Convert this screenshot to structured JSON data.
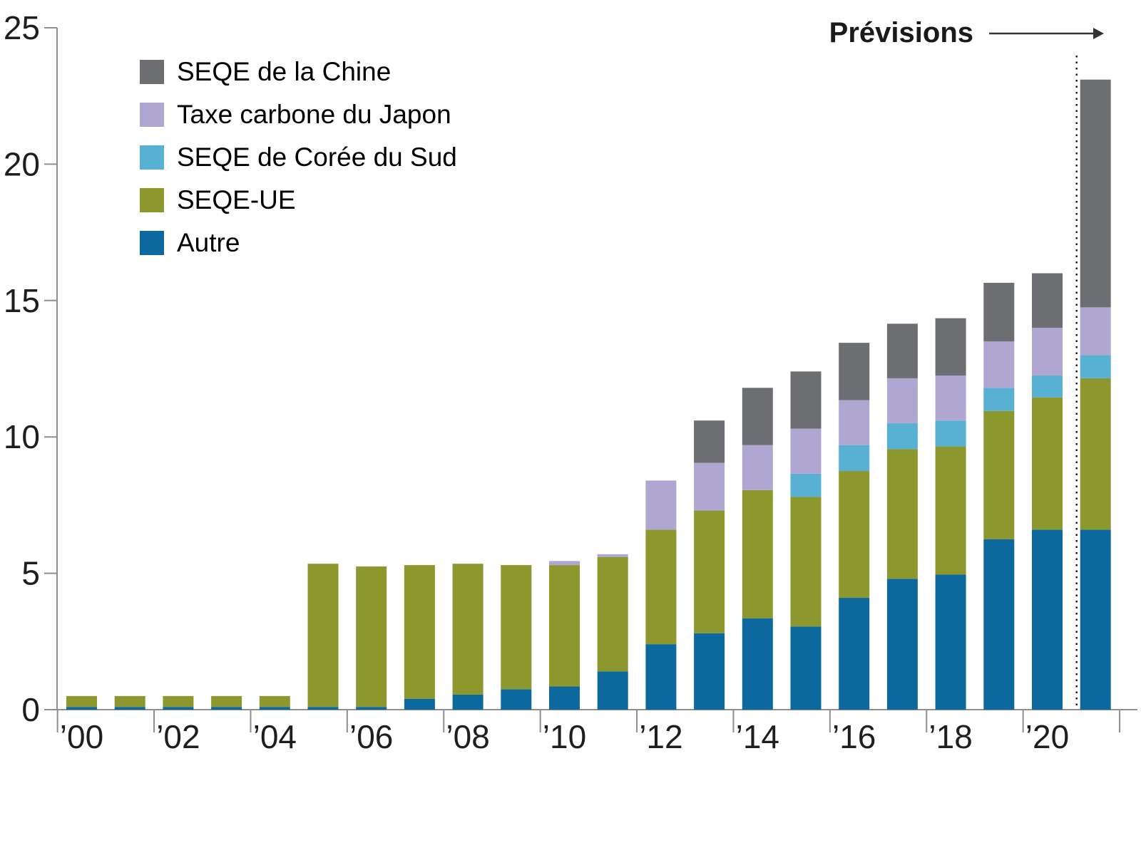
{
  "chart_data": {
    "type": "bar",
    "stacked": true,
    "years": [
      2000,
      2001,
      2002,
      2003,
      2004,
      2005,
      2006,
      2007,
      2008,
      2009,
      2010,
      2011,
      2012,
      2013,
      2014,
      2015,
      2016,
      2017,
      2018,
      2019,
      2020,
      2021
    ],
    "series": [
      {
        "name": "Autre",
        "color": "#0d699d",
        "values": [
          0.1,
          0.1,
          0.1,
          0.1,
          0.1,
          0.1,
          0.1,
          0.4,
          0.55,
          0.75,
          0.85,
          1.4,
          2.4,
          2.8,
          3.35,
          3.05,
          4.1,
          4.8,
          4.95,
          6.25,
          6.6,
          6.6
        ]
      },
      {
        "name": "SEQE-UE",
        "color": "#8c982d",
        "values": [
          0.4,
          0.4,
          0.4,
          0.4,
          0.4,
          5.25,
          5.15,
          4.9,
          4.8,
          4.55,
          4.45,
          4.2,
          4.2,
          4.5,
          4.7,
          4.75,
          4.65,
          4.75,
          4.7,
          4.7,
          4.85,
          5.55
        ]
      },
      {
        "name": "SEQE de Corée du Sud",
        "color": "#58b0d2",
        "values": [
          0,
          0,
          0,
          0,
          0,
          0,
          0,
          0,
          0,
          0,
          0,
          0,
          0,
          0,
          0,
          0.85,
          0.95,
          0.95,
          0.95,
          0.85,
          0.8,
          0.85
        ]
      },
      {
        "name": "Taxe carbone du Japon",
        "color": "#b0a6d2",
        "values": [
          0,
          0,
          0,
          0,
          0,
          0,
          0,
          0,
          0,
          0,
          0.15,
          0.1,
          1.8,
          1.75,
          1.65,
          1.65,
          1.65,
          1.65,
          1.65,
          1.7,
          1.75,
          1.75
        ]
      },
      {
        "name": "SEQE de la Chine",
        "color": "#6d6e71",
        "values": [
          0,
          0,
          0,
          0,
          0,
          0,
          0,
          0,
          0,
          0,
          0,
          0,
          0,
          1.55,
          2.1,
          2.1,
          2.1,
          2.0,
          2.1,
          2.15,
          2.0,
          8.35
        ]
      }
    ],
    "legend": [
      {
        "label": "SEQE de la Chine",
        "color": "#6d6e71"
      },
      {
        "label": "Taxe carbone du Japon",
        "color": "#b0a6d2"
      },
      {
        "label": "SEQE de Corée du Sud",
        "color": "#58b0d2"
      },
      {
        "label": "SEQE-UE",
        "color": "#8c982d"
      },
      {
        "label": "Autre",
        "color": "#0d699d"
      }
    ],
    "ylim": [
      0,
      25
    ],
    "yticks": [
      0,
      5,
      10,
      15,
      20,
      25
    ],
    "xtick_labels": [
      "’00",
      "’02",
      "’04",
      "’06",
      "’08",
      "’10",
      "’12",
      "’14",
      "’16",
      "’18",
      "’20"
    ],
    "annotation": {
      "label": "Prévisions",
      "forecast_divider_before_year": 2021
    },
    "grid": false,
    "legend_position": "top-left",
    "axis_color": "#8e8e8e",
    "text_color": "#1e1e1e"
  }
}
